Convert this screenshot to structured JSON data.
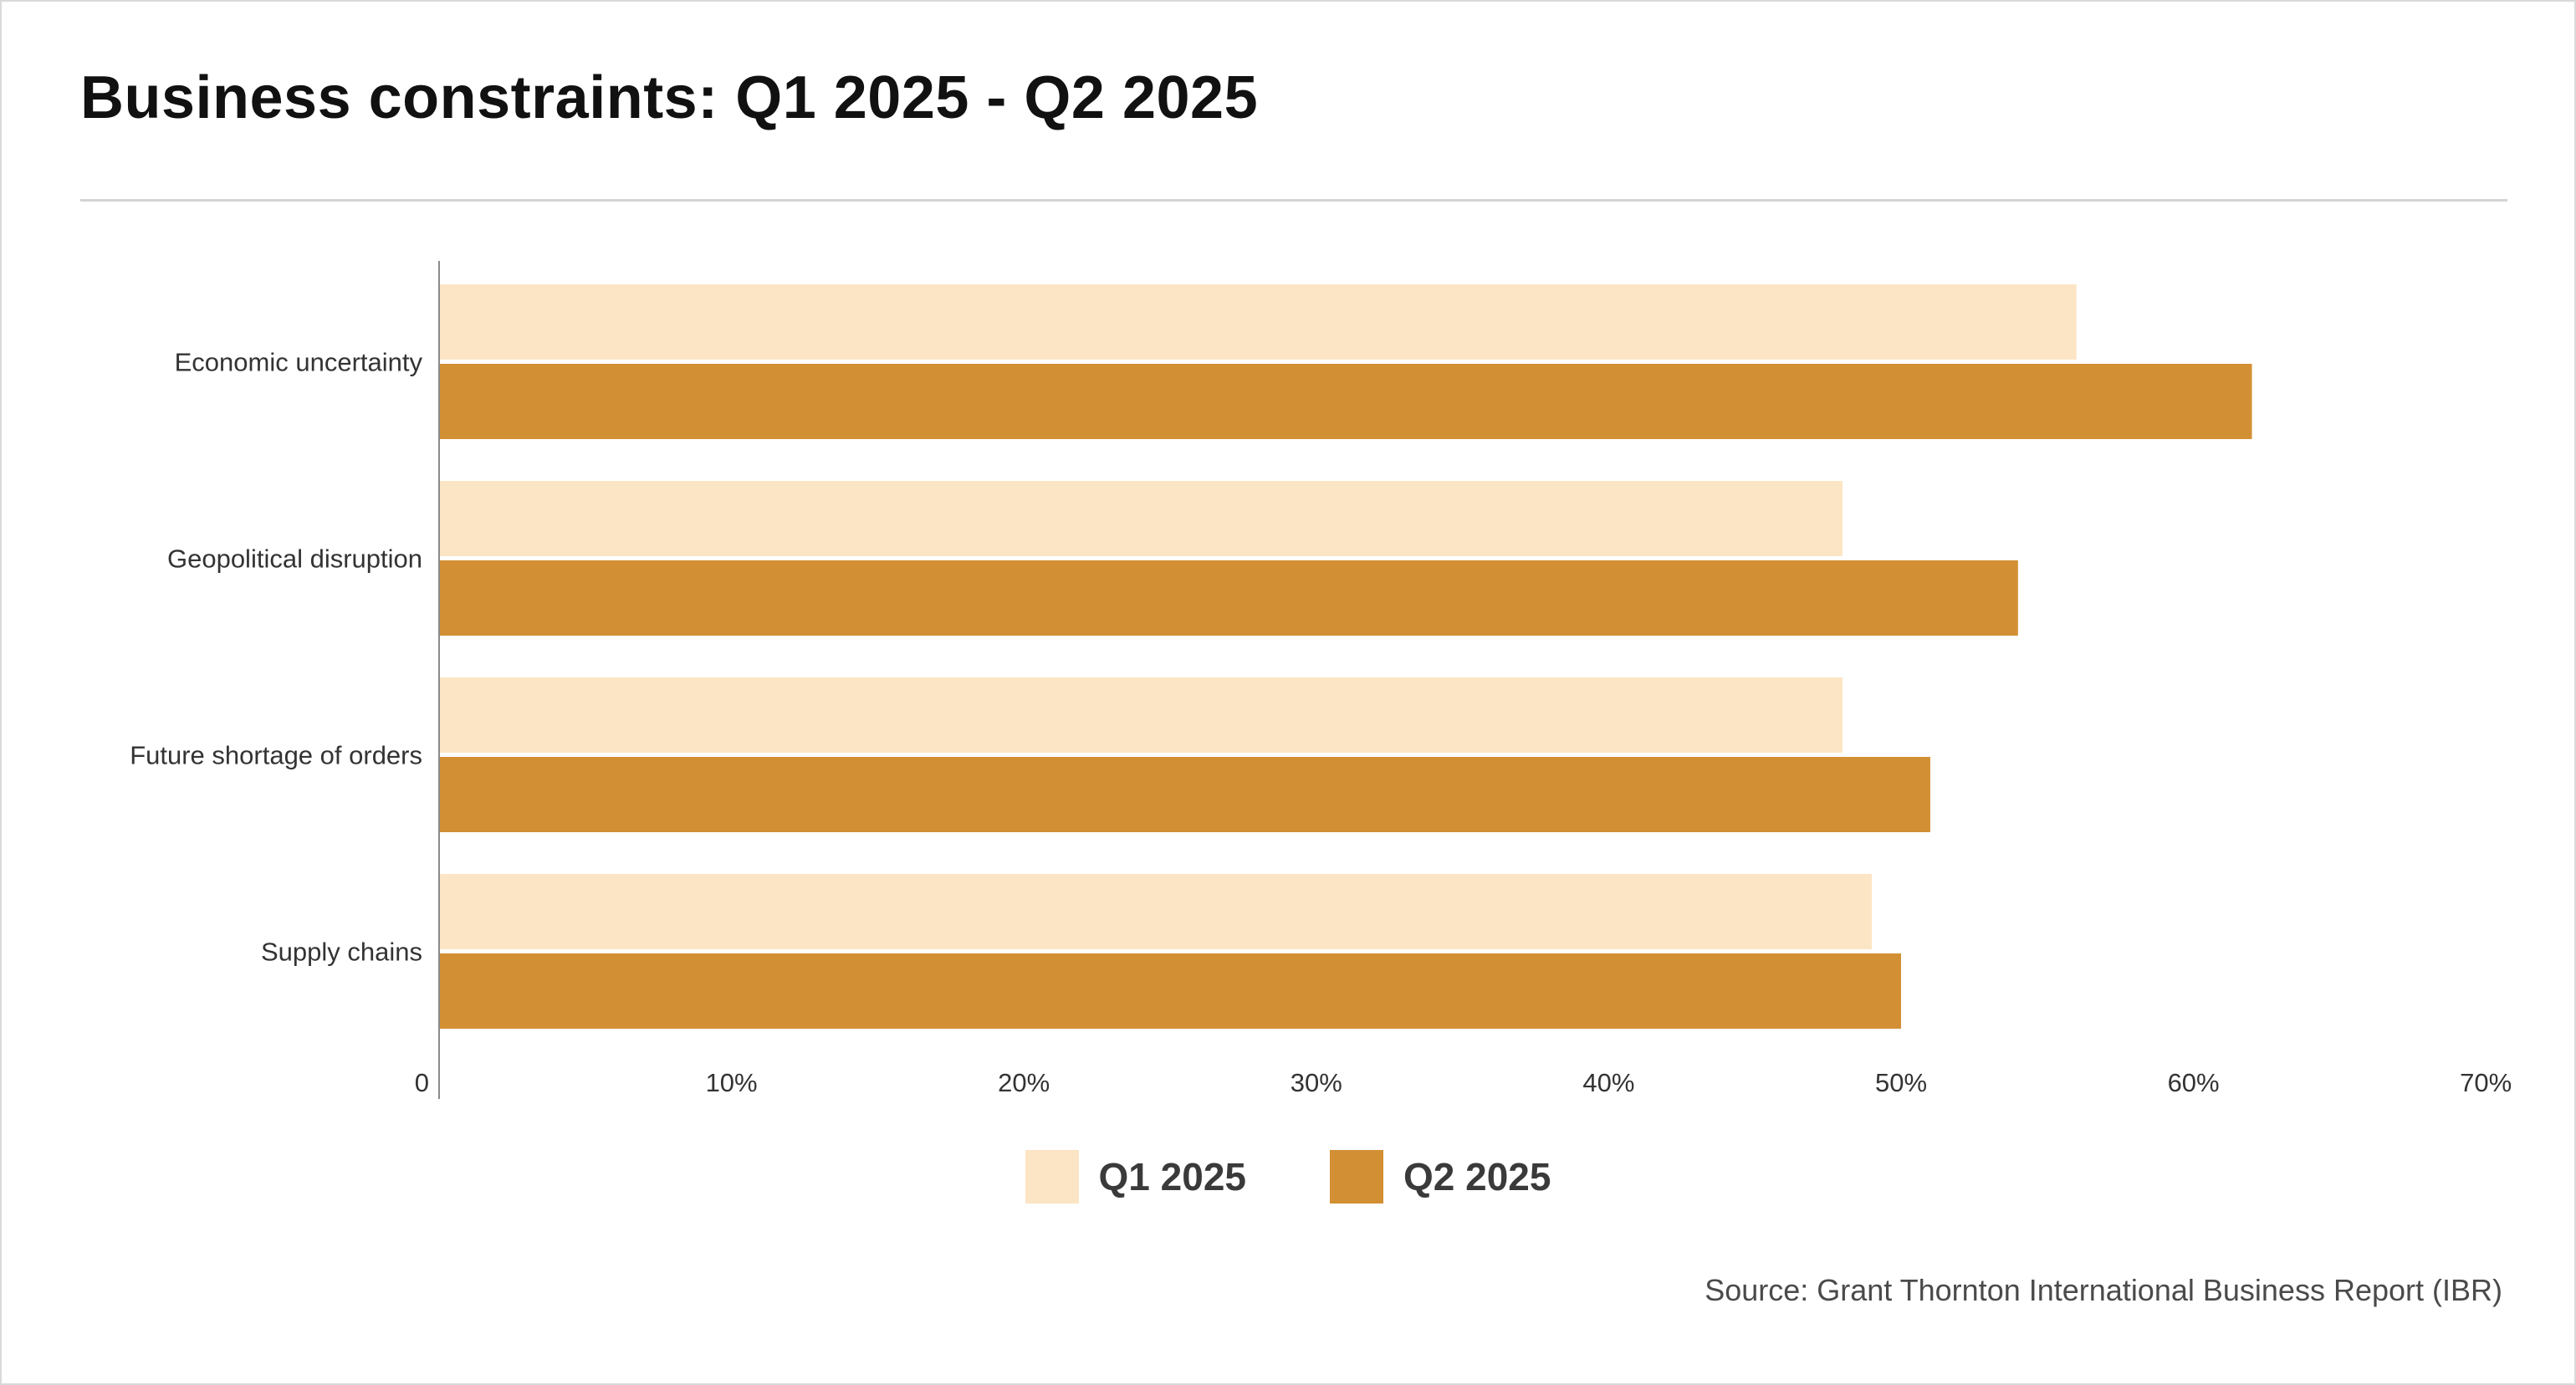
{
  "title": "Business constraints: Q1 2025 - Q2 2025",
  "source": "Source: Grant Thornton International Business Report (IBR)",
  "colors": {
    "q1": "#fce5c5",
    "q2": "#d38f33",
    "axis": "#8a8a8a"
  },
  "chart_data": {
    "type": "bar",
    "orientation": "horizontal",
    "categories": [
      "Economic uncertainty",
      "Geopolitical disruption",
      "Future shortage of orders",
      "Supply chains"
    ],
    "series": [
      {
        "name": "Q1 2025",
        "values": [
          56,
          48,
          48,
          49
        ]
      },
      {
        "name": "Q2 2025",
        "values": [
          62,
          54,
          51,
          50
        ]
      }
    ],
    "xlim": [
      0,
      70
    ],
    "xticks": [
      0,
      10,
      20,
      30,
      40,
      50,
      60,
      70
    ],
    "xtick_labels": [
      "0",
      "10%",
      "20%",
      "30%",
      "40%",
      "50%",
      "60%",
      "70%"
    ],
    "legend_position": "bottom-center",
    "grid": false
  }
}
